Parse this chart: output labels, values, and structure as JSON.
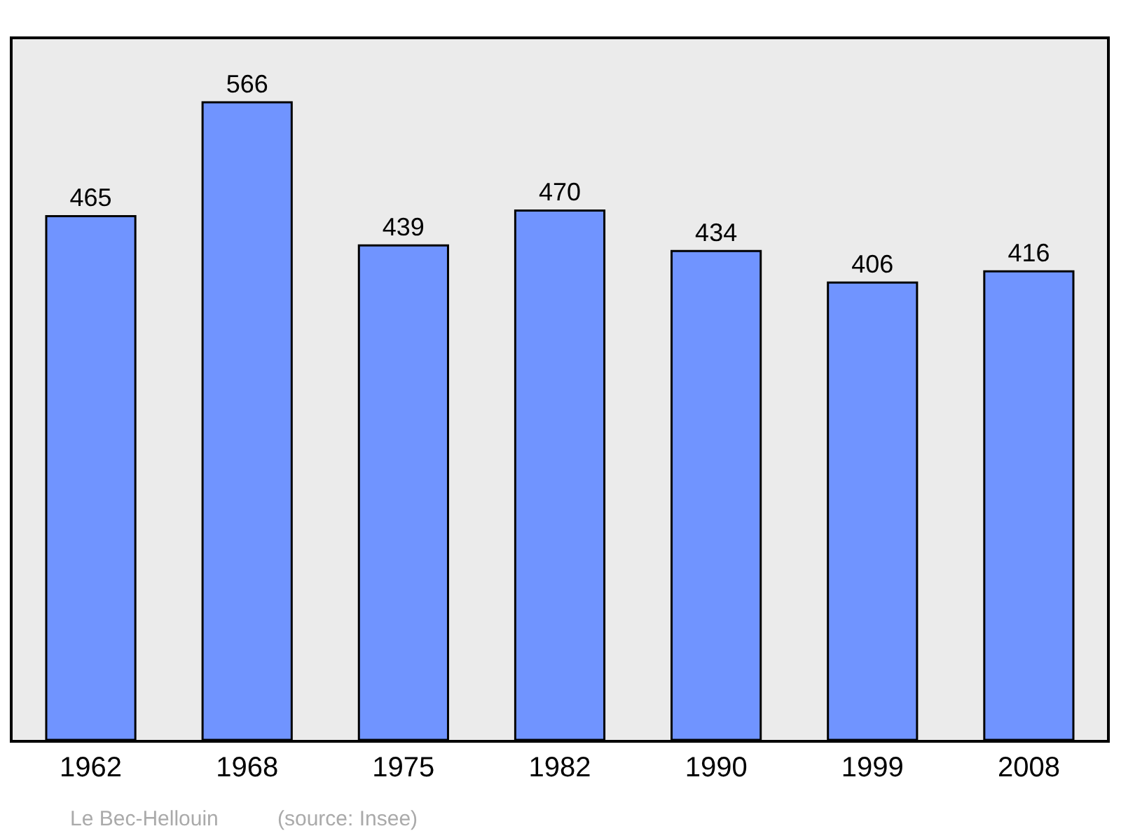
{
  "chart_data": {
    "type": "bar",
    "categories": [
      "1962",
      "1968",
      "1975",
      "1982",
      "1990",
      "1999",
      "2008"
    ],
    "values": [
      465,
      566,
      439,
      470,
      434,
      406,
      416
    ],
    "color": "#7094ff",
    "ylim": [
      0,
      622
    ],
    "data_labels": true,
    "grid": false,
    "legend": false,
    "tick_labels": "x",
    "annotations": [
      "Le Bec-Hellouin",
      "(source: Insee)"
    ]
  }
}
